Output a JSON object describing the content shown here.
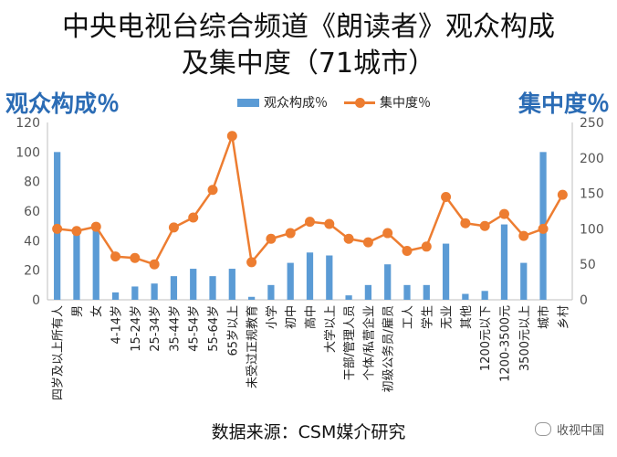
{
  "title": {
    "line1": "中央电视台综合频道《朗读者》观众构成",
    "line2": "及集中度（71城市）"
  },
  "source": "数据来源：CSM媒介研究",
  "watermark": "收视中国",
  "colors": {
    "bar": "#5b9bd5",
    "line": "#ed7d31",
    "axis_title": "#2b6cb5"
  },
  "chart_data": {
    "type": "bar",
    "categories": [
      "四岁及以上所有人",
      "男",
      "女",
      "4-14岁",
      "15-24岁",
      "25-34岁",
      "35-44岁",
      "45-54岁",
      "55-64岁",
      "65岁以上",
      "未受过正规教育",
      "小学",
      "初中",
      "高中",
      "大学以上",
      "干部/管理人员",
      "个体/私营企业",
      "初级公务员/雇员",
      "工人",
      "学生",
      "无业",
      "其他",
      "1200元以下",
      "1200-3500元",
      "3500元以上",
      "城市",
      "乡村"
    ],
    "series": [
      {
        "name": "观众构成％",
        "type": "bar",
        "axis": "left",
        "values": [
          100,
          47,
          52,
          5,
          9,
          11,
          16,
          21,
          16,
          21,
          2,
          10,
          25,
          32,
          30,
          3,
          10,
          24,
          10,
          10,
          38,
          4,
          6,
          51,
          25,
          100,
          0
        ]
      },
      {
        "name": "集中度％",
        "type": "line",
        "axis": "right",
        "values": [
          100,
          97,
          103,
          61,
          59,
          50,
          102,
          116,
          155,
          231,
          53,
          86,
          94,
          110,
          107,
          86,
          81,
          94,
          69,
          75,
          145,
          108,
          104,
          121,
          90,
          100,
          148
        ]
      }
    ],
    "y_left": {
      "label": "观众构成％",
      "lim": [
        0,
        120
      ],
      "ticks": [
        0,
        20,
        40,
        60,
        80,
        100,
        120
      ]
    },
    "y_right": {
      "label": "集中度％",
      "lim": [
        0,
        250
      ],
      "ticks": [
        0,
        50,
        100,
        150,
        200,
        250
      ]
    },
    "legend_position": "top"
  }
}
